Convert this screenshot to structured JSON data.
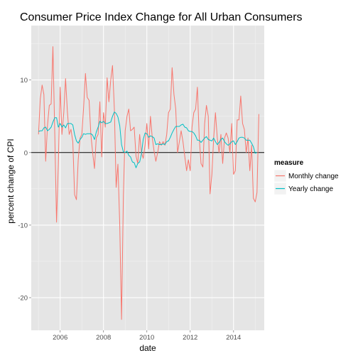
{
  "chart_data": {
    "type": "line",
    "title": "Consumer Price Index Change for All Urban Consumers",
    "xlabel": "date",
    "ylabel": "percent change of CPI",
    "xlim": [
      "2004-09-01",
      "2015-06-01"
    ],
    "ylim": [
      -24.5,
      17.5
    ],
    "x_ticks": [
      {
        "label": "2006",
        "date": "2006-01-01"
      },
      {
        "label": "2008",
        "date": "2008-01-01"
      },
      {
        "label": "2010",
        "date": "2010-01-01"
      },
      {
        "label": "2012",
        "date": "2012-01-01"
      },
      {
        "label": "2014",
        "date": "2014-01-01"
      }
    ],
    "y_ticks": [
      10,
      0,
      -10,
      -20
    ],
    "grid": true,
    "background_color": "#e5e5e5",
    "zero_line": 0,
    "legend": {
      "title": "measure",
      "position": "right"
    },
    "series": [
      {
        "name": "Monthly change",
        "color": "#f8766d",
        "points": [
          [
            "2005-01",
            2.5
          ],
          [
            "2005-02",
            7.4
          ],
          [
            "2005-03",
            9.3
          ],
          [
            "2005-04",
            8.0
          ],
          [
            "2005-05",
            -1.2
          ],
          [
            "2005-06",
            3.8
          ],
          [
            "2005-07",
            6.5
          ],
          [
            "2005-08",
            6.7
          ],
          [
            "2005-09",
            14.6
          ],
          [
            "2005-10",
            2.6
          ],
          [
            "2005-11",
            -9.6
          ],
          [
            "2005-12",
            -1.6
          ],
          [
            "2006-01",
            9.0
          ],
          [
            "2006-02",
            2.5
          ],
          [
            "2006-03",
            5.5
          ],
          [
            "2006-04",
            10.2
          ],
          [
            "2006-05",
            5.6
          ],
          [
            "2006-06",
            2.5
          ],
          [
            "2006-07",
            3.2
          ],
          [
            "2006-08",
            1.5
          ],
          [
            "2006-09",
            -5.8
          ],
          [
            "2006-10",
            -6.5
          ],
          [
            "2006-11",
            -1.0
          ],
          [
            "2006-12",
            2.0
          ],
          [
            "2007-01",
            2.5
          ],
          [
            "2007-02",
            6.2
          ],
          [
            "2007-03",
            10.9
          ],
          [
            "2007-04",
            7.6
          ],
          [
            "2007-05",
            7.2
          ],
          [
            "2007-06",
            2.5
          ],
          [
            "2007-07",
            0.0
          ],
          [
            "2007-08",
            -2.2
          ],
          [
            "2007-09",
            2.0
          ],
          [
            "2007-10",
            2.5
          ],
          [
            "2007-11",
            7.0
          ],
          [
            "2007-12",
            -0.6
          ],
          [
            "2008-01",
            5.5
          ],
          [
            "2008-02",
            3.5
          ],
          [
            "2008-03",
            10.3
          ],
          [
            "2008-04",
            7.0
          ],
          [
            "2008-05",
            10.0
          ],
          [
            "2008-06",
            12.0
          ],
          [
            "2008-07",
            6.0
          ],
          [
            "2008-08",
            -4.8
          ],
          [
            "2008-09",
            -1.6
          ],
          [
            "2008-10",
            -10.0
          ],
          [
            "2008-11",
            -23.0
          ],
          [
            "2008-12",
            -6.0
          ],
          [
            "2009-01",
            3.0
          ],
          [
            "2009-02",
            5.0
          ],
          [
            "2009-03",
            6.0
          ],
          [
            "2009-04",
            3.0
          ],
          [
            "2009-05",
            3.2
          ],
          [
            "2009-06",
            3.5
          ],
          [
            "2009-07",
            -0.5
          ],
          [
            "2009-08",
            -1.5
          ],
          [
            "2009-09",
            2.5
          ],
          [
            "2009-10",
            0.0
          ],
          [
            "2009-11",
            -0.8
          ],
          [
            "2009-12",
            1.0
          ],
          [
            "2010-01",
            4.0
          ],
          [
            "2010-02",
            0.5
          ],
          [
            "2010-03",
            5.0
          ],
          [
            "2010-04",
            2.0
          ],
          [
            "2010-05",
            0.2
          ],
          [
            "2010-06",
            -1.2
          ],
          [
            "2010-07",
            0.0
          ],
          [
            "2010-08",
            1.5
          ],
          [
            "2010-09",
            1.0
          ],
          [
            "2010-10",
            1.5
          ],
          [
            "2010-11",
            1.0
          ],
          [
            "2010-12",
            2.5
          ],
          [
            "2011-01",
            5.5
          ],
          [
            "2011-02",
            6.0
          ],
          [
            "2011-03",
            11.7
          ],
          [
            "2011-04",
            8.0
          ],
          [
            "2011-05",
            6.0
          ],
          [
            "2011-06",
            0.0
          ],
          [
            "2011-07",
            1.5
          ],
          [
            "2011-08",
            3.0
          ],
          [
            "2011-09",
            1.5
          ],
          [
            "2011-10",
            -0.5
          ],
          [
            "2011-11",
            -2.5
          ],
          [
            "2011-12",
            -1.0
          ],
          [
            "2012-01",
            -2.5
          ],
          [
            "2012-02",
            3.5
          ],
          [
            "2012-03",
            5.5
          ],
          [
            "2012-04",
            6.0
          ],
          [
            "2012-05",
            9.0
          ],
          [
            "2012-06",
            2.0
          ],
          [
            "2012-07",
            -1.5
          ],
          [
            "2012-08",
            -2.0
          ],
          [
            "2012-09",
            4.0
          ],
          [
            "2012-10",
            6.5
          ],
          [
            "2012-11",
            5.0
          ],
          [
            "2012-12",
            -5.7
          ],
          [
            "2013-01",
            -3.0
          ],
          [
            "2013-02",
            2.0
          ],
          [
            "2013-03",
            5.5
          ],
          [
            "2013-04",
            2.0
          ],
          [
            "2013-05",
            0.0
          ],
          [
            "2013-06",
            2.5
          ],
          [
            "2013-07",
            -1.5
          ],
          [
            "2013-08",
            2.0
          ],
          [
            "2013-09",
            2.7
          ],
          [
            "2013-10",
            2.0
          ],
          [
            "2013-11",
            0.0
          ],
          [
            "2013-12",
            4.0
          ],
          [
            "2014-01",
            -3.0
          ],
          [
            "2014-02",
            -2.5
          ],
          [
            "2014-03",
            4.5
          ],
          [
            "2014-04",
            4.5
          ],
          [
            "2014-05",
            7.8
          ],
          [
            "2014-06",
            4.0
          ],
          [
            "2014-07",
            3.2
          ],
          [
            "2014-08",
            0.0
          ],
          [
            "2014-09",
            2.0
          ],
          [
            "2014-10",
            -2.5
          ],
          [
            "2014-11",
            1.0
          ],
          [
            "2014-12",
            -6.3
          ],
          [
            "2015-01",
            -6.8
          ],
          [
            "2015-02",
            -5.5
          ],
          [
            "2015-03",
            5.3
          ]
        ]
      },
      {
        "name": "Yearly change",
        "color": "#00bfc4",
        "points": [
          [
            "2005-01",
            2.9
          ],
          [
            "2005-02",
            3.0
          ],
          [
            "2005-03",
            3.0
          ],
          [
            "2005-04",
            3.4
          ],
          [
            "2005-05",
            3.5
          ],
          [
            "2005-06",
            3.0
          ],
          [
            "2005-07",
            3.2
          ],
          [
            "2005-08",
            3.5
          ],
          [
            "2005-09",
            4.2
          ],
          [
            "2005-10",
            4.8
          ],
          [
            "2005-11",
            4.8
          ],
          [
            "2005-12",
            3.5
          ],
          [
            "2006-01",
            4.0
          ],
          [
            "2006-02",
            3.5
          ],
          [
            "2006-03",
            3.8
          ],
          [
            "2006-04",
            3.4
          ],
          [
            "2006-05",
            4.0
          ],
          [
            "2006-06",
            4.0
          ],
          [
            "2006-07",
            4.0
          ],
          [
            "2006-08",
            3.8
          ],
          [
            "2006-09",
            2.5
          ],
          [
            "2006-10",
            1.6
          ],
          [
            "2006-11",
            1.3
          ],
          [
            "2006-12",
            1.8
          ],
          [
            "2007-01",
            2.1
          ],
          [
            "2007-02",
            2.6
          ],
          [
            "2007-03",
            2.5
          ],
          [
            "2007-04",
            2.6
          ],
          [
            "2007-05",
            2.6
          ],
          [
            "2007-06",
            2.6
          ],
          [
            "2007-07",
            2.4
          ],
          [
            "2007-08",
            1.8
          ],
          [
            "2007-09",
            2.8
          ],
          [
            "2007-10",
            3.5
          ],
          [
            "2007-11",
            4.3
          ],
          [
            "2007-12",
            4.1
          ],
          [
            "2008-01",
            4.3
          ],
          [
            "2008-02",
            4.0
          ],
          [
            "2008-03",
            4.0
          ],
          [
            "2008-04",
            4.1
          ],
          [
            "2008-05",
            4.2
          ],
          [
            "2008-06",
            5.0
          ],
          [
            "2008-07",
            5.6
          ],
          [
            "2008-08",
            5.4
          ],
          [
            "2008-09",
            4.9
          ],
          [
            "2008-10",
            3.7
          ],
          [
            "2008-11",
            1.1
          ],
          [
            "2008-12",
            0.1
          ],
          [
            "2009-01",
            0.0
          ],
          [
            "2009-02",
            0.2
          ],
          [
            "2009-03",
            -0.4
          ],
          [
            "2009-04",
            -0.6
          ],
          [
            "2009-05",
            -1.3
          ],
          [
            "2009-06",
            -1.4
          ],
          [
            "2009-07",
            -2.1
          ],
          [
            "2009-08",
            -1.5
          ],
          [
            "2009-09",
            -1.3
          ],
          [
            "2009-10",
            -0.2
          ],
          [
            "2009-11",
            1.8
          ],
          [
            "2009-12",
            2.7
          ],
          [
            "2010-01",
            2.6
          ],
          [
            "2010-02",
            2.1
          ],
          [
            "2010-03",
            2.3
          ],
          [
            "2010-04",
            2.2
          ],
          [
            "2010-05",
            2.0
          ],
          [
            "2010-06",
            1.1
          ],
          [
            "2010-07",
            1.2
          ],
          [
            "2010-08",
            1.1
          ],
          [
            "2010-09",
            1.1
          ],
          [
            "2010-10",
            1.2
          ],
          [
            "2010-11",
            1.1
          ],
          [
            "2010-12",
            1.5
          ],
          [
            "2011-01",
            1.6
          ],
          [
            "2011-02",
            2.1
          ],
          [
            "2011-03",
            2.7
          ],
          [
            "2011-04",
            3.2
          ],
          [
            "2011-05",
            3.6
          ],
          [
            "2011-06",
            3.6
          ],
          [
            "2011-07",
            3.6
          ],
          [
            "2011-08",
            3.8
          ],
          [
            "2011-09",
            3.9
          ],
          [
            "2011-10",
            3.5
          ],
          [
            "2011-11",
            3.4
          ],
          [
            "2011-12",
            3.0
          ],
          [
            "2012-01",
            2.9
          ],
          [
            "2012-02",
            2.9
          ],
          [
            "2012-03",
            2.7
          ],
          [
            "2012-04",
            2.3
          ],
          [
            "2012-05",
            1.7
          ],
          [
            "2012-06",
            1.7
          ],
          [
            "2012-07",
            1.4
          ],
          [
            "2012-08",
            1.7
          ],
          [
            "2012-09",
            2.0
          ],
          [
            "2012-10",
            2.2
          ],
          [
            "2012-11",
            1.8
          ],
          [
            "2012-12",
            1.7
          ],
          [
            "2013-01",
            1.6
          ],
          [
            "2013-02",
            2.0
          ],
          [
            "2013-03",
            1.5
          ],
          [
            "2013-04",
            1.1
          ],
          [
            "2013-05",
            1.4
          ],
          [
            "2013-06",
            1.8
          ],
          [
            "2013-07",
            2.0
          ],
          [
            "2013-08",
            1.5
          ],
          [
            "2013-09",
            1.2
          ],
          [
            "2013-10",
            1.0
          ],
          [
            "2013-11",
            1.2
          ],
          [
            "2013-12",
            1.5
          ],
          [
            "2014-01",
            1.6
          ],
          [
            "2014-02",
            1.1
          ],
          [
            "2014-03",
            1.5
          ],
          [
            "2014-04",
            2.0
          ],
          [
            "2014-05",
            2.1
          ],
          [
            "2014-06",
            2.1
          ],
          [
            "2014-07",
            2.0
          ],
          [
            "2014-08",
            1.7
          ],
          [
            "2014-09",
            1.7
          ],
          [
            "2014-10",
            1.7
          ],
          [
            "2014-11",
            1.3
          ],
          [
            "2014-12",
            0.8
          ],
          [
            "2015-01",
            -0.1
          ],
          [
            "2015-02",
            0.0
          ]
        ]
      }
    ]
  }
}
